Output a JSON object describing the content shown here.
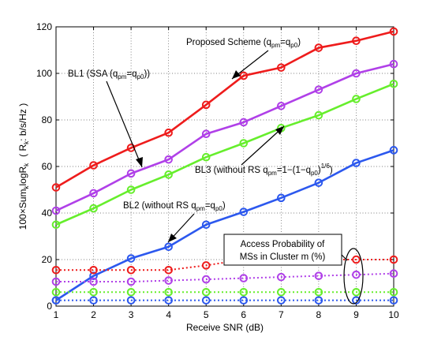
{
  "chart_data": {
    "type": "line",
    "x": [
      1,
      2,
      3,
      4,
      5,
      6,
      7,
      8,
      9,
      10
    ],
    "xlim": [
      1,
      10
    ],
    "ylim": [
      0,
      120
    ],
    "xticks": [
      "1",
      "2",
      "3",
      "4",
      "5",
      "6",
      "7",
      "8",
      "9",
      "10"
    ],
    "yticks": [
      "0",
      "20",
      "40",
      "60",
      "80",
      "100",
      "120"
    ],
    "xlabel": "Receive SNR (dB)",
    "ylabel": "100×Sum_k logR_k  ( R_k: b/s/Hz )",
    "grid": true,
    "series": [
      {
        "key": "proposed",
        "color": "#ee1c1c",
        "style": "solid",
        "values": [
          51,
          60.5,
          68,
          74.5,
          86.5,
          99,
          102.5,
          111,
          114,
          118
        ]
      },
      {
        "key": "bl1",
        "color": "#b040e8",
        "style": "solid",
        "values": [
          41,
          48.5,
          57,
          63,
          74,
          79,
          86,
          93,
          100,
          104
        ]
      },
      {
        "key": "bl3",
        "color": "#66ee2c",
        "style": "solid",
        "values": [
          35,
          42,
          50,
          56.5,
          64,
          70,
          76.5,
          82,
          89,
          95.5
        ]
      },
      {
        "key": "bl2",
        "color": "#2c58ee",
        "style": "solid",
        "values": [
          2.5,
          13,
          20.5,
          25.5,
          35,
          40.5,
          46.5,
          53,
          61.5,
          67
        ]
      },
      {
        "key": "access_red",
        "color": "#ee1c1c",
        "style": "dotted",
        "values": [
          15.5,
          15.5,
          15.5,
          15.5,
          17.5,
          20,
          20,
          20,
          20,
          20
        ]
      },
      {
        "key": "access_purple",
        "color": "#b040e8",
        "style": "dotted",
        "values": [
          10.5,
          10.5,
          10.5,
          11,
          11.5,
          12,
          12.5,
          13,
          13.5,
          14
        ]
      },
      {
        "key": "access_green",
        "color": "#66ee2c",
        "style": "dotted",
        "values": [
          6,
          6,
          6,
          6,
          6,
          6,
          6,
          6,
          6,
          6
        ]
      },
      {
        "key": "access_blue",
        "color": "#2c58ee",
        "style": "dotted",
        "values": [
          2.5,
          2.5,
          2.5,
          2.5,
          2.5,
          2.5,
          2.5,
          2.5,
          2.5,
          2.5
        ]
      }
    ],
    "annotations": {
      "proposed": {
        "text": "Proposed Scheme (q",
        "sub1": "pm",
        "eq": "=q",
        "sub2": "p0",
        "close": ")"
      },
      "bl1": {
        "text": "BL1 (SSA (q",
        "sub1": "pm",
        "eq": "=q",
        "sub2": "p0",
        "close": "))"
      },
      "bl3": {
        "text": "BL3 (without RS q",
        "sub1": "pm",
        "eq": "=1−(1−q",
        "sub2": "p0",
        "close": ")",
        "sup": "1/6",
        "end": ")"
      },
      "bl2": {
        "text": "BL2 (without RS q",
        "sub1": "pm",
        "eq": "=q",
        "sub2": "p0",
        "close": ")"
      },
      "access_line1": "Access Probability of",
      "access_line2": "MSs in Cluster m (%)"
    }
  }
}
